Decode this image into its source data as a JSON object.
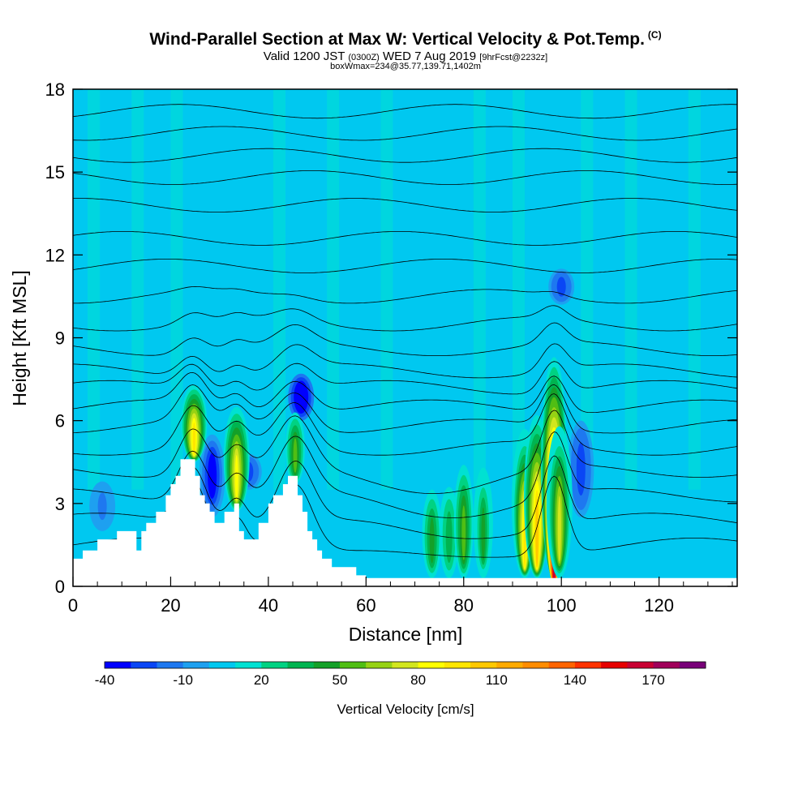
{
  "title": {
    "main": "Wind-Parallel Section at Max W: Vertical Velocity & Pot.Temp.",
    "main_suffix": "(C)",
    "valid_a": "Valid 1200 JST",
    "valid_b": "(0300Z)",
    "valid_c": "WED 7 Aug 2019",
    "valid_d": "[9hrFcst@2232z]",
    "box": "boxWmax=234@35.77,139.71,1402m"
  },
  "chart_data": {
    "type": "heatmap",
    "xlabel": "Distance [nm]",
    "ylabel": "Height [Kft MSL]",
    "xlim": [
      0,
      136
    ],
    "ylim": [
      0,
      18
    ],
    "x_ticks": [
      0,
      20,
      40,
      60,
      80,
      100,
      120
    ],
    "y_ticks": [
      0,
      3,
      6,
      9,
      12,
      15,
      18
    ],
    "background_value_cm_s": 0,
    "colorbar": {
      "title": "Vertical Velocity [cm/s]",
      "tick_values": [
        -40,
        -10,
        20,
        50,
        80,
        110,
        140,
        170
      ],
      "levels": [
        -40,
        -30,
        -20,
        -10,
        0,
        10,
        20,
        30,
        40,
        50,
        60,
        70,
        80,
        90,
        100,
        110,
        120,
        130,
        140,
        150,
        160,
        170,
        180
      ],
      "colors": [
        "#0000ff",
        "#0a46f5",
        "#1e78f0",
        "#1ea0f0",
        "#00c8f0",
        "#00e1d2",
        "#00d282",
        "#00b450",
        "#14a028",
        "#50be14",
        "#96d214",
        "#d2e61e",
        "#ffff00",
        "#ffe600",
        "#ffc800",
        "#ffaa00",
        "#ff8c00",
        "#ff6400",
        "#ff3200",
        "#e60000",
        "#c80032",
        "#a0005a",
        "#780078"
      ]
    },
    "terrain_kft": [
      [
        0,
        1.0
      ],
      [
        2,
        1.0
      ],
      [
        2,
        1.3
      ],
      [
        5,
        1.3
      ],
      [
        5,
        1.7
      ],
      [
        9,
        1.7
      ],
      [
        9,
        2.0
      ],
      [
        13,
        2.0
      ],
      [
        13,
        1.3
      ],
      [
        14,
        1.3
      ],
      [
        14,
        2.0
      ],
      [
        15,
        2.0
      ],
      [
        15,
        2.3
      ],
      [
        17,
        2.3
      ],
      [
        17,
        2.7
      ],
      [
        19,
        2.7
      ],
      [
        19,
        3.3
      ],
      [
        20,
        3.3
      ],
      [
        20,
        3.7
      ],
      [
        21,
        3.7
      ],
      [
        21,
        4.0
      ],
      [
        22,
        4.0
      ],
      [
        22,
        4.6
      ],
      [
        25,
        4.6
      ],
      [
        25,
        4.0
      ],
      [
        26,
        4.0
      ],
      [
        26,
        3.3
      ],
      [
        27,
        3.3
      ],
      [
        27,
        3.0
      ],
      [
        28,
        3.0
      ],
      [
        28,
        2.7
      ],
      [
        29,
        2.7
      ],
      [
        29,
        2.3
      ],
      [
        31,
        2.3
      ],
      [
        31,
        2.7
      ],
      [
        33,
        2.7
      ],
      [
        33,
        3.0
      ],
      [
        34,
        3.0
      ],
      [
        34,
        2.0
      ],
      [
        35,
        2.0
      ],
      [
        35,
        1.7
      ],
      [
        38,
        1.7
      ],
      [
        38,
        2.3
      ],
      [
        40,
        2.3
      ],
      [
        40,
        3.0
      ],
      [
        41,
        3.0
      ],
      [
        41,
        3.3
      ],
      [
        43,
        3.3
      ],
      [
        43,
        3.7
      ],
      [
        44,
        3.7
      ],
      [
        44,
        4.0
      ],
      [
        46,
        4.0
      ],
      [
        46,
        3.3
      ],
      [
        47,
        3.3
      ],
      [
        47,
        2.7
      ],
      [
        48,
        2.7
      ],
      [
        48,
        2.0
      ],
      [
        49,
        2.0
      ],
      [
        49,
        1.7
      ],
      [
        50,
        1.7
      ],
      [
        50,
        1.3
      ],
      [
        51,
        1.3
      ],
      [
        51,
        1.0
      ],
      [
        53,
        1.0
      ],
      [
        53,
        0.7
      ],
      [
        58,
        0.7
      ],
      [
        58,
        0.4
      ],
      [
        60,
        0.4
      ],
      [
        60,
        0.3
      ],
      [
        136,
        0.3
      ]
    ],
    "updraft_features": [
      {
        "x": 24.8,
        "base_kft": 4.5,
        "top_kft": 7.3,
        "peak_cm_s": 90
      },
      {
        "x": 33.5,
        "base_kft": 2.7,
        "top_kft": 6.5,
        "peak_cm_s": 80
      },
      {
        "x": 45.5,
        "base_kft": 3.7,
        "top_kft": 6.3,
        "peak_cm_s": 50
      },
      {
        "x": 73.5,
        "base_kft": 0.3,
        "top_kft": 3.5,
        "peak_cm_s": 40
      },
      {
        "x": 77.0,
        "base_kft": 0.3,
        "top_kft": 3.6,
        "peak_cm_s": 30
      },
      {
        "x": 80.0,
        "base_kft": 0.3,
        "top_kft": 4.4,
        "peak_cm_s": 50
      },
      {
        "x": 84.0,
        "base_kft": 0.3,
        "top_kft": 4.3,
        "peak_cm_s": 45
      },
      {
        "x": 92.5,
        "base_kft": 0.3,
        "top_kft": 5.7,
        "peak_cm_s": 95
      },
      {
        "x": 95.0,
        "base_kft": 0.3,
        "top_kft": 6.2,
        "peak_cm_s": 100
      },
      {
        "x": 98.5,
        "base_kft": 0.3,
        "top_kft": 8.3,
        "peak_cm_s": 160
      },
      {
        "x": 99.6,
        "base_kft": 0.3,
        "top_kft": 5.8,
        "peak_cm_s": 75
      }
    ],
    "downdraft_features": [
      {
        "x": 28.5,
        "base_kft": 2.5,
        "top_kft": 5.5,
        "min_cm_s": -30
      },
      {
        "x": 46.7,
        "base_kft": 6.0,
        "top_kft": 7.7,
        "min_cm_s": -40
      },
      {
        "x": 36.0,
        "base_kft": 3.5,
        "top_kft": 4.8,
        "min_cm_s": -20
      },
      {
        "x": 104.0,
        "base_kft": 2.5,
        "top_kft": 6.0,
        "min_cm_s": -20
      },
      {
        "x": 6.0,
        "base_kft": 2.0,
        "top_kft": 3.8,
        "min_cm_s": -10
      },
      {
        "x": 100.0,
        "base_kft": 10.2,
        "top_kft": 11.5,
        "min_cm_s": -20
      }
    ],
    "theta_contours_kft": [
      1.5,
      2.4,
      3.3,
      4.2,
      5.0,
      5.8,
      6.5,
      7.2,
      7.8,
      8.6,
      9.5,
      10.5,
      11.6,
      12.6,
      13.8,
      14.8,
      15.6,
      16.4,
      17.2
    ]
  }
}
